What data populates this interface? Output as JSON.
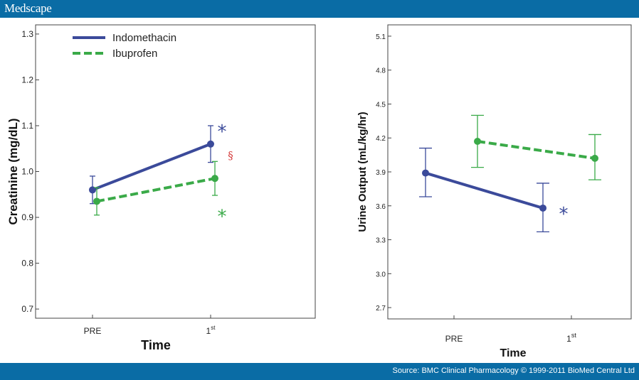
{
  "header": {
    "brand": "Medscape"
  },
  "footer": {
    "source": "Source: BMC Clinical Pharmacology © 1999-2011 BioMed Central Ltd"
  },
  "colors": {
    "bar": "#0a6ca5",
    "indomethacin": "#3b4a9a",
    "ibuprofen": "#3aaa48",
    "section_mark": "#d43a3a"
  },
  "chart_data": [
    {
      "type": "line",
      "xlabel": "Time",
      "ylabel": "Creatinine (mg/dL)",
      "categories": [
        "PRE",
        "1st"
      ],
      "yticks": [
        "0.7",
        "0.8",
        "0.9",
        "1.0",
        "1.1",
        "1.2",
        "1.3"
      ],
      "ylim": [
        0.68,
        1.32
      ],
      "grid": false,
      "legend": "top-left",
      "series": [
        {
          "name": "Indomethacin",
          "style": "solid",
          "values": [
            0.96,
            1.06
          ],
          "err_low": [
            0.93,
            1.02
          ],
          "err_high": [
            0.99,
            1.1
          ]
        },
        {
          "name": "Ibuprofen",
          "style": "dashed",
          "values": [
            0.935,
            0.985
          ],
          "err_low": [
            0.905,
            0.948
          ],
          "err_high": [
            0.965,
            1.022
          ]
        }
      ],
      "annotations": [
        {
          "text": "*",
          "series": "Indomethacin",
          "category": "1st",
          "y": 1.1
        },
        {
          "text": "§",
          "category": "1st",
          "y": 1.035
        },
        {
          "text": "*",
          "series": "Ibuprofen",
          "category": "1st",
          "y": 0.915
        }
      ]
    },
    {
      "type": "line",
      "xlabel": "Time",
      "ylabel": "Urine Output (mL/kg/hr)",
      "categories": [
        "PRE",
        "1st"
      ],
      "yticks": [
        "2.7",
        "3.0",
        "3.3",
        "3.6",
        "3.9",
        "4.2",
        "4.5",
        "4.8",
        "5.1"
      ],
      "ylim": [
        2.6,
        5.2
      ],
      "grid": false,
      "series": [
        {
          "name": "Indomethacin",
          "style": "solid",
          "values": [
            3.89,
            3.58
          ],
          "err_low": [
            3.68,
            3.37
          ],
          "err_high": [
            4.11,
            3.8
          ]
        },
        {
          "name": "Ibuprofen",
          "style": "dashed",
          "values": [
            4.17,
            4.02
          ],
          "err_low": [
            3.94,
            3.83
          ],
          "err_high": [
            4.4,
            4.23
          ]
        }
      ],
      "annotations": [
        {
          "text": "*",
          "series": "Indomethacin",
          "category": "1st",
          "y": 3.58
        }
      ]
    }
  ]
}
